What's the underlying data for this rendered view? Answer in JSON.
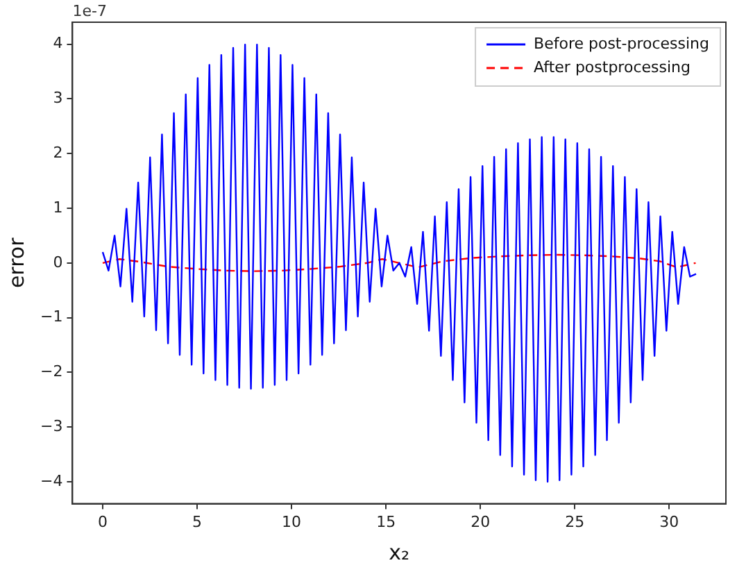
{
  "chart_data": {
    "type": "line",
    "xlabel": "x₂",
    "ylabel": "error",
    "annotations": [
      "1e-7"
    ],
    "xlim": [
      -1.6,
      33
    ],
    "ylim": [
      -4.4,
      4.4
    ],
    "xticks": [
      0,
      5,
      10,
      15,
      20,
      25,
      30
    ],
    "yticks": [
      -4,
      -3,
      -2,
      -1,
      0,
      1,
      2,
      3,
      4
    ],
    "grid": false,
    "legend": "top right",
    "marker": "none",
    "series": [
      {
        "name": "Before post-processing",
        "color": "#0000ff",
        "line_style": "solid",
        "x": [
          0,
          0.31,
          0.63,
          0.94,
          1.26,
          1.57,
          1.88,
          2.2,
          2.51,
          2.83,
          3.14,
          3.46,
          3.77,
          4.08,
          4.4,
          4.71,
          5.03,
          5.34,
          5.65,
          5.97,
          6.28,
          6.6,
          6.91,
          7.23,
          7.54,
          7.85,
          8.17,
          8.48,
          8.8,
          9.11,
          9.42,
          9.74,
          10.05,
          10.37,
          10.68,
          11.0,
          11.31,
          11.62,
          11.94,
          12.25,
          12.57,
          12.88,
          13.19,
          13.51,
          13.82,
          14.14,
          14.45,
          14.77,
          15.08,
          15.39,
          15.71,
          16.02,
          16.34,
          16.65,
          16.96,
          17.28,
          17.59,
          17.91,
          18.22,
          18.54,
          18.85,
          19.16,
          19.48,
          19.79,
          20.11,
          20.42,
          20.73,
          21.05,
          21.36,
          21.68,
          21.99,
          22.31,
          22.62,
          22.93,
          23.25,
          23.56,
          23.88,
          24.19,
          24.5,
          24.82,
          25.13,
          25.45,
          25.76,
          26.08,
          26.39,
          26.7,
          27.02,
          27.33,
          27.65,
          27.96,
          28.27,
          28.59,
          28.9,
          29.22,
          29.53,
          29.85,
          30.16,
          30.47,
          30.79,
          31.1,
          31.42
        ],
        "values": [
          0.2,
          -0.14,
          0.5,
          -0.43,
          0.99,
          -0.71,
          1.47,
          -0.98,
          1.93,
          -1.23,
          2.35,
          -1.47,
          2.74,
          -1.68,
          3.08,
          -1.86,
          3.38,
          -2.02,
          3.62,
          -2.14,
          3.8,
          -2.23,
          3.93,
          -2.28,
          3.99,
          -2.3,
          3.99,
          -2.28,
          3.93,
          -2.23,
          3.8,
          -2.14,
          3.62,
          -2.02,
          3.38,
          -1.86,
          3.08,
          -1.68,
          2.74,
          -1.47,
          2.35,
          -1.23,
          1.93,
          -0.98,
          1.47,
          -0.71,
          0.99,
          -0.43,
          0.5,
          -0.14,
          0,
          -0.25,
          0.29,
          -0.75,
          0.57,
          -1.24,
          0.85,
          -1.7,
          1.11,
          -2.14,
          1.35,
          -2.55,
          1.57,
          -2.92,
          1.77,
          -3.24,
          1.94,
          -3.51,
          2.08,
          -3.72,
          2.19,
          -3.87,
          2.26,
          -3.97,
          2.3,
          -4.0,
          2.3,
          -3.97,
          2.26,
          -3.87,
          2.19,
          -3.72,
          2.08,
          -3.51,
          1.94,
          -3.24,
          1.77,
          -2.92,
          1.57,
          -2.55,
          1.35,
          -2.14,
          1.11,
          -1.7,
          0.85,
          -1.24,
          0.57,
          -0.75,
          0.29,
          -0.25,
          -0.2
        ]
      },
      {
        "name": "After postprocessing",
        "color": "#ff0000",
        "line_style": "dashed",
        "x": [
          0,
          0.9,
          2,
          3.5,
          5,
          6.5,
          8,
          9.5,
          11,
          12.5,
          14,
          14.8,
          15.7,
          16.7,
          18,
          19.5,
          21,
          22.5,
          24,
          25.5,
          27,
          28.5,
          29.5,
          30.4,
          31.4
        ],
        "values": [
          0,
          0.07,
          0.02,
          -0.07,
          -0.11,
          -0.14,
          -0.15,
          -0.14,
          -0.11,
          -0.07,
          0,
          0.07,
          0,
          -0.08,
          0.03,
          0.09,
          0.12,
          0.14,
          0.15,
          0.14,
          0.12,
          0.08,
          0.03,
          -0.08,
          0
        ]
      }
    ]
  }
}
